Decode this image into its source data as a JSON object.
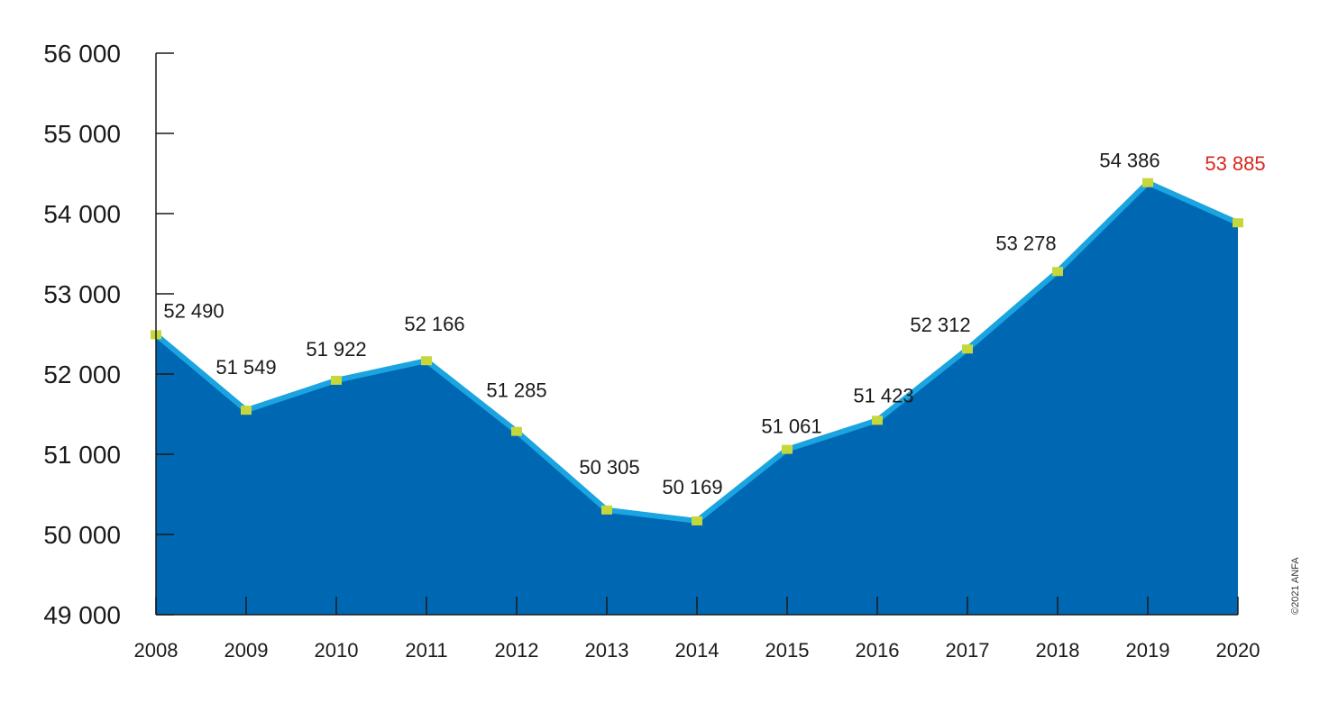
{
  "chart_data": {
    "type": "area",
    "x": [
      "2008",
      "2009",
      "2010",
      "2011",
      "2012",
      "2013",
      "2014",
      "2015",
      "2016",
      "2017",
      "2018",
      "2019",
      "2020"
    ],
    "series": [
      {
        "values": [
          52490,
          51549,
          51922,
          52166,
          51285,
          50305,
          50169,
          51061,
          51423,
          52312,
          53278,
          54386,
          53885
        ]
      }
    ],
    "data_labels": [
      "52 490",
      "51 549",
      "51 922",
      "52 166",
      "51 285",
      "50 305",
      "50 169",
      "51 061",
      "51 423",
      "52 312",
      "53 278",
      "54 386",
      "53 885"
    ],
    "highlight_last_label": true,
    "ylim": [
      49000,
      56000
    ],
    "yticks": [
      49000,
      50000,
      51000,
      52000,
      53000,
      54000,
      55000,
      56000
    ],
    "ytick_labels": [
      "49 000",
      "50 000",
      "51 000",
      "52 000",
      "53 000",
      "54 000",
      "55 000",
      "56 000"
    ],
    "title": "",
    "xlabel": "",
    "ylabel": "",
    "grid": false,
    "legend": "none",
    "colors": {
      "area_fill": "#0068b3",
      "line": "#1aa4e0",
      "marker": "#c6d73b",
      "highlight_label": "#d9261c",
      "axis": "#1a1a1a",
      "text": "#1a1a1a"
    }
  },
  "credit": "©2021 ANFA"
}
